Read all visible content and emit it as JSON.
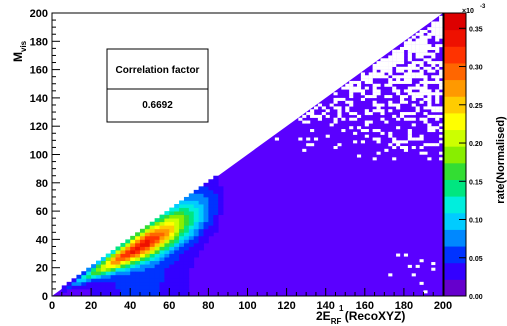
{
  "chart_data": {
    "type": "heatmap",
    "xlabel": "2E",
    "xlabel_sup": "1",
    "xlabel_sub": "RF",
    "xlabel_suffix": " (RecoXYZ)",
    "ylabel": "M",
    "ylabel_sub": "vis",
    "zlabel": "rate(Normalised)",
    "zscale_label": "×10",
    "zscale_exp": "-3",
    "xlim": [
      0,
      200
    ],
    "ylim": [
      0,
      200
    ],
    "zlim": [
      0,
      0.00037
    ],
    "xticks": [
      0,
      20,
      40,
      60,
      80,
      100,
      120,
      140,
      160,
      180,
      200
    ],
    "yticks": [
      0,
      20,
      40,
      60,
      80,
      100,
      120,
      140,
      160,
      180,
      200
    ],
    "zticks": [
      0,
      0.05,
      0.1,
      0.15,
      0.2,
      0.25,
      0.3,
      0.35
    ],
    "ztick_labels": [
      "0.00",
      "0.05",
      "0.10",
      "0.15",
      "0.20",
      "0.25",
      "0.30",
      "0.35"
    ],
    "grid": false,
    "annotation": {
      "title": "Correlation factor",
      "value": "0.6692"
    },
    "palette": [
      "#6600cc",
      "#3300ff",
      "#0033ff",
      "#0088ff",
      "#00ccff",
      "#00eedd",
      "#00e680",
      "#33dd33",
      "#88ee00",
      "#ccff00",
      "#ffff00",
      "#ffcc00",
      "#ff9900",
      "#ff6600",
      "#ff3300",
      "#ee1100",
      "#dd0000"
    ],
    "background_color": "#5a00ff",
    "empty_bin_color": "#ffffff"
  }
}
